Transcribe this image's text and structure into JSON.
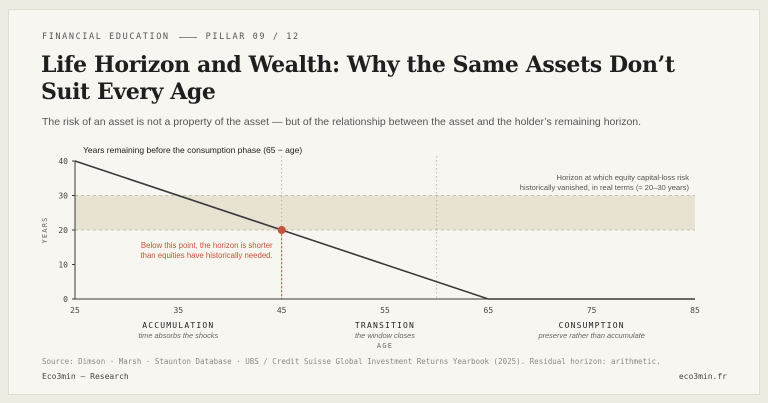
{
  "header": {
    "kicker_left": "FINANCIAL EDUCATION",
    "kicker_right": "PILLAR 09 / 12",
    "title": "Life Horizon and Wealth: Why the Same Assets Don’t Suit Every Age",
    "subtitle": "The risk of an asset is not a property of the asset — but of the relationship between the asset and the holder’s remaining horizon."
  },
  "chart_data": {
    "type": "line",
    "title": "Years remaining before the consumption phase (65 − age)",
    "xlabel": "AGE",
    "ylabel": "YEARS",
    "xlim": [
      25,
      85
    ],
    "ylim": [
      0,
      40
    ],
    "xticks": [
      25,
      35,
      45,
      55,
      65,
      75,
      85
    ],
    "yticks": [
      0,
      10,
      20,
      30,
      40
    ],
    "series": [
      {
        "x": [
          25,
          45,
          65,
          85
        ],
        "y": [
          40,
          20,
          0,
          0
        ]
      }
    ],
    "band": {
      "y_range": [
        20,
        30
      ],
      "label_line1": "Horizon at which equity capital-loss risk",
      "label_line2": "historically vanished, in real terms (≈ 20–30 years)"
    },
    "marker": {
      "x": 45,
      "y": 20,
      "label_line1": "Below this point, the horizon is shorter",
      "label_line2": "than equities have historically needed."
    },
    "phase_dividers": [
      45,
      60
    ],
    "phases": [
      {
        "name": "ACCUMULATION",
        "description": "time absorbs the shocks",
        "x_center": 35
      },
      {
        "name": "TRANSITION",
        "description": "the window closes",
        "x_center": 55
      },
      {
        "name": "CONSUMPTION",
        "description": "preserve rather than accumulate",
        "x_center": 75
      }
    ],
    "colors": {
      "line": "#3a3a3a",
      "band": "#e8e2d2",
      "marker": "#c5533a",
      "axis": "#3a3a3a",
      "grid_dashed": "#b8b1a3"
    }
  },
  "footer": {
    "source": "Source: Dimson · Marsh · Staunton Database · UBS / Credit Suisse Global Investment Returns Yearbook (2025). Residual horizon: arithmetic.",
    "brand": "Eco3min — Research",
    "site": "eco3min.fr"
  }
}
